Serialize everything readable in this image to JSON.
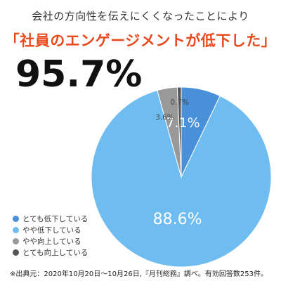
{
  "colors": {
    "title": "#e8491d",
    "slice_1": "#4a90d9",
    "slice_2": "#6fbdf0",
    "slice_3": "#999999",
    "slice_4": "#555555",
    "label_dark": "#444444",
    "label_light": "#ffffff"
  },
  "chart_data": {
    "type": "pie",
    "subtitle": "会社の方向性を伝えにくくなったことにより",
    "title": "「社員のエンゲージメントが低下した」",
    "headline": "95.7%",
    "start_angle_deg": 0,
    "direction": "clockwise",
    "slices": [
      {
        "label": "とても低下している",
        "value": 7.1,
        "value_label": "7.1%",
        "color": "#4a90d9"
      },
      {
        "label": "やや低下している",
        "value": 88.6,
        "value_label": "88.6%",
        "color": "#6fbdf0"
      },
      {
        "label": "やや向上している",
        "value": 3.6,
        "value_label": "3.6%",
        "color": "#999999"
      },
      {
        "label": "とても向上している",
        "value": 0.7,
        "value_label": "0.7%",
        "color": "#555555"
      }
    ],
    "legend_position": "bottom-left",
    "source": "※出典元：2020年10月20日～10月26日,『月刊総務』調べ。有効回答数253件。"
  }
}
